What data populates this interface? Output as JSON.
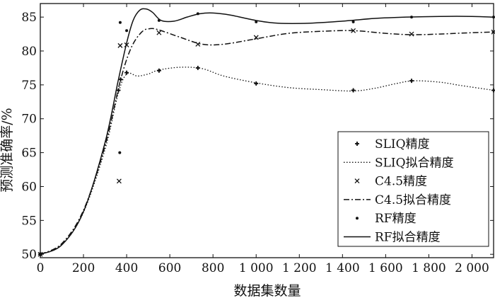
{
  "chart_data": {
    "type": "line",
    "xlabel": "数据集数量",
    "ylabel": "预测准确率/%",
    "xlim": [
      0,
      2100
    ],
    "ylim": [
      49.5,
      87
    ],
    "x_ticks": [
      0,
      200,
      400,
      600,
      800,
      1000,
      1200,
      1400,
      1600,
      1800,
      2000
    ],
    "x_tick_labels": [
      "0",
      "200",
      "400",
      "600",
      "800",
      "1 000",
      "1 200",
      "1 400",
      "1 600",
      "1 800",
      "2 000"
    ],
    "y_ticks": [
      50,
      55,
      60,
      65,
      70,
      75,
      80,
      85
    ],
    "y_tick_labels": [
      "50",
      "55",
      "60",
      "65",
      "70",
      "75",
      "80",
      "85"
    ],
    "grid": false,
    "legend_position": "bottom-right",
    "series": [
      {
        "name": "SLIQ精度",
        "kind": "points",
        "marker": "plus",
        "points": [
          [
            0,
            50
          ],
          [
            362,
            74.2
          ],
          [
            372,
            75.8
          ],
          [
            400,
            76.8
          ],
          [
            550,
            77.1
          ],
          [
            730,
            77.5
          ],
          [
            1000,
            75.2
          ],
          [
            1450,
            74.2
          ],
          [
            1720,
            75.6
          ],
          [
            2100,
            74.2
          ]
        ]
      },
      {
        "name": "SLIQ拟合精度",
        "kind": "line",
        "dash": "dotted",
        "points": [
          [
            0,
            50
          ],
          [
            100,
            51.4
          ],
          [
            200,
            56.2
          ],
          [
            300,
            65.5
          ],
          [
            360,
            73.6
          ],
          [
            400,
            76.6
          ],
          [
            450,
            76.3
          ],
          [
            500,
            76.6
          ],
          [
            550,
            77.2
          ],
          [
            650,
            77.6
          ],
          [
            750,
            77.4
          ],
          [
            850,
            76.3
          ],
          [
            1000,
            75.3
          ],
          [
            1150,
            74.6
          ],
          [
            1300,
            74.3
          ],
          [
            1450,
            74.1
          ],
          [
            1550,
            74.5
          ],
          [
            1650,
            75.2
          ],
          [
            1730,
            75.6
          ],
          [
            1850,
            75.4
          ],
          [
            1950,
            74.9
          ],
          [
            2100,
            74.2
          ]
        ]
      },
      {
        "name": "C4.5精度",
        "kind": "points",
        "marker": "x",
        "points": [
          [
            0,
            50
          ],
          [
            365,
            60.8
          ],
          [
            370,
            80.8
          ],
          [
            400,
            80.9
          ],
          [
            550,
            82.7
          ],
          [
            730,
            81
          ],
          [
            1000,
            82
          ],
          [
            1450,
            83
          ],
          [
            1720,
            82.5
          ],
          [
            2100,
            82.8
          ]
        ]
      },
      {
        "name": "C4.5拟合精度",
        "kind": "line",
        "dash": "dashdot",
        "points": [
          [
            0,
            50
          ],
          [
            100,
            51.6
          ],
          [
            200,
            56.5
          ],
          [
            300,
            66
          ],
          [
            370,
            75.5
          ],
          [
            420,
            80.4
          ],
          [
            470,
            82.8
          ],
          [
            510,
            83.3
          ],
          [
            550,
            83.1
          ],
          [
            650,
            82
          ],
          [
            750,
            81
          ],
          [
            850,
            81
          ],
          [
            1000,
            81.8
          ],
          [
            1150,
            82.6
          ],
          [
            1300,
            82.9
          ],
          [
            1450,
            83
          ],
          [
            1600,
            82.6
          ],
          [
            1720,
            82.4
          ],
          [
            1850,
            82.5
          ],
          [
            2000,
            82.7
          ],
          [
            2100,
            82.8
          ]
        ]
      },
      {
        "name": "RF精度",
        "kind": "points",
        "marker": "dot",
        "points": [
          [
            0,
            50
          ],
          [
            368,
            65
          ],
          [
            370,
            84.2
          ],
          [
            400,
            83
          ],
          [
            550,
            84.5
          ],
          [
            730,
            85.5
          ],
          [
            1000,
            84.3
          ],
          [
            1450,
            84.3
          ],
          [
            1720,
            85
          ],
          [
            2100,
            85
          ]
        ]
      },
      {
        "name": "RF拟合精度",
        "kind": "line",
        "dash": "solid",
        "points": [
          [
            0,
            50
          ],
          [
            100,
            51.4
          ],
          [
            200,
            56.3
          ],
          [
            300,
            66.5
          ],
          [
            360,
            75.5
          ],
          [
            400,
            81.2
          ],
          [
            430,
            84.5
          ],
          [
            460,
            86
          ],
          [
            490,
            86.2
          ],
          [
            520,
            85.7
          ],
          [
            560,
            84.5
          ],
          [
            620,
            84.4
          ],
          [
            680,
            85
          ],
          [
            740,
            85.5
          ],
          [
            800,
            85.6
          ],
          [
            880,
            85.3
          ],
          [
            1000,
            84.5
          ],
          [
            1100,
            84.1
          ],
          [
            1250,
            84.1
          ],
          [
            1400,
            84.4
          ],
          [
            1550,
            84.8
          ],
          [
            1700,
            85
          ],
          [
            1850,
            85.1
          ],
          [
            2000,
            85.1
          ],
          [
            2100,
            85
          ]
        ]
      }
    ]
  }
}
